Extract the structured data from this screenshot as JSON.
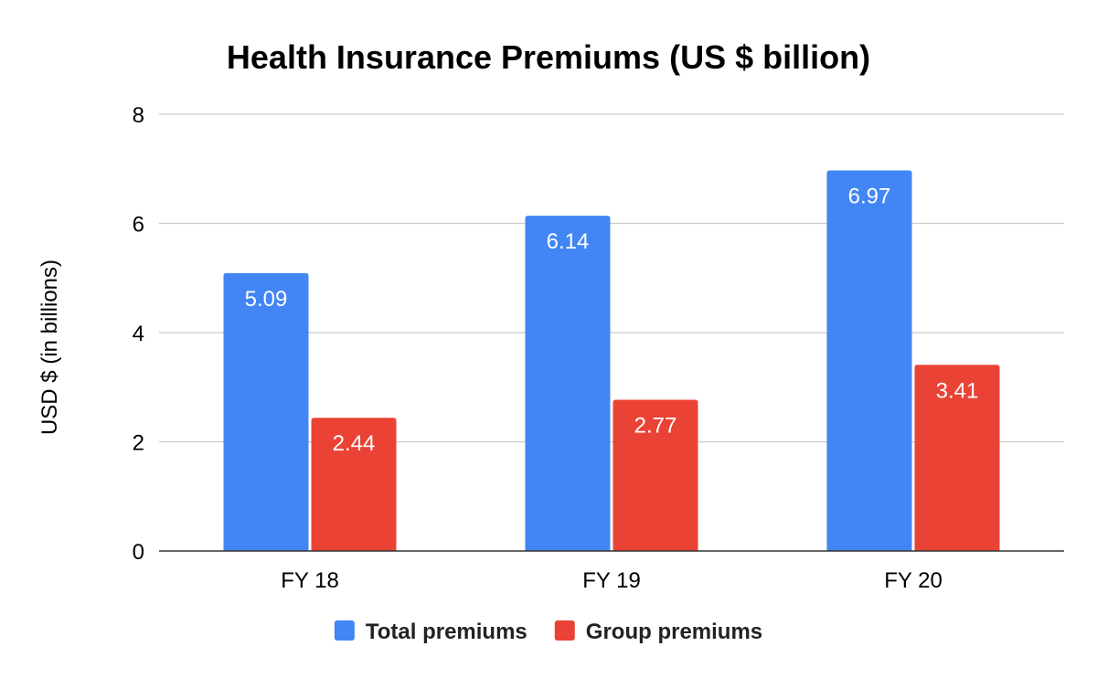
{
  "chart_data": {
    "type": "bar",
    "title": "Health Insurance Premiums (US $ billion)",
    "ylabel": "USD $ (in billions)",
    "xlabel": "",
    "categories": [
      "FY 18",
      "FY 19",
      "FY 20"
    ],
    "ylim": [
      0,
      8
    ],
    "yticks": [
      0,
      2,
      4,
      6,
      8
    ],
    "grid": true,
    "legend_position": "bottom",
    "series": [
      {
        "name": "Total premiums",
        "color": "#4285f4",
        "values": [
          5.09,
          6.14,
          6.97
        ]
      },
      {
        "name": "Group premiums",
        "color": "#ea4335",
        "values": [
          2.44,
          2.77,
          3.41
        ]
      }
    ],
    "data_labels": true
  }
}
